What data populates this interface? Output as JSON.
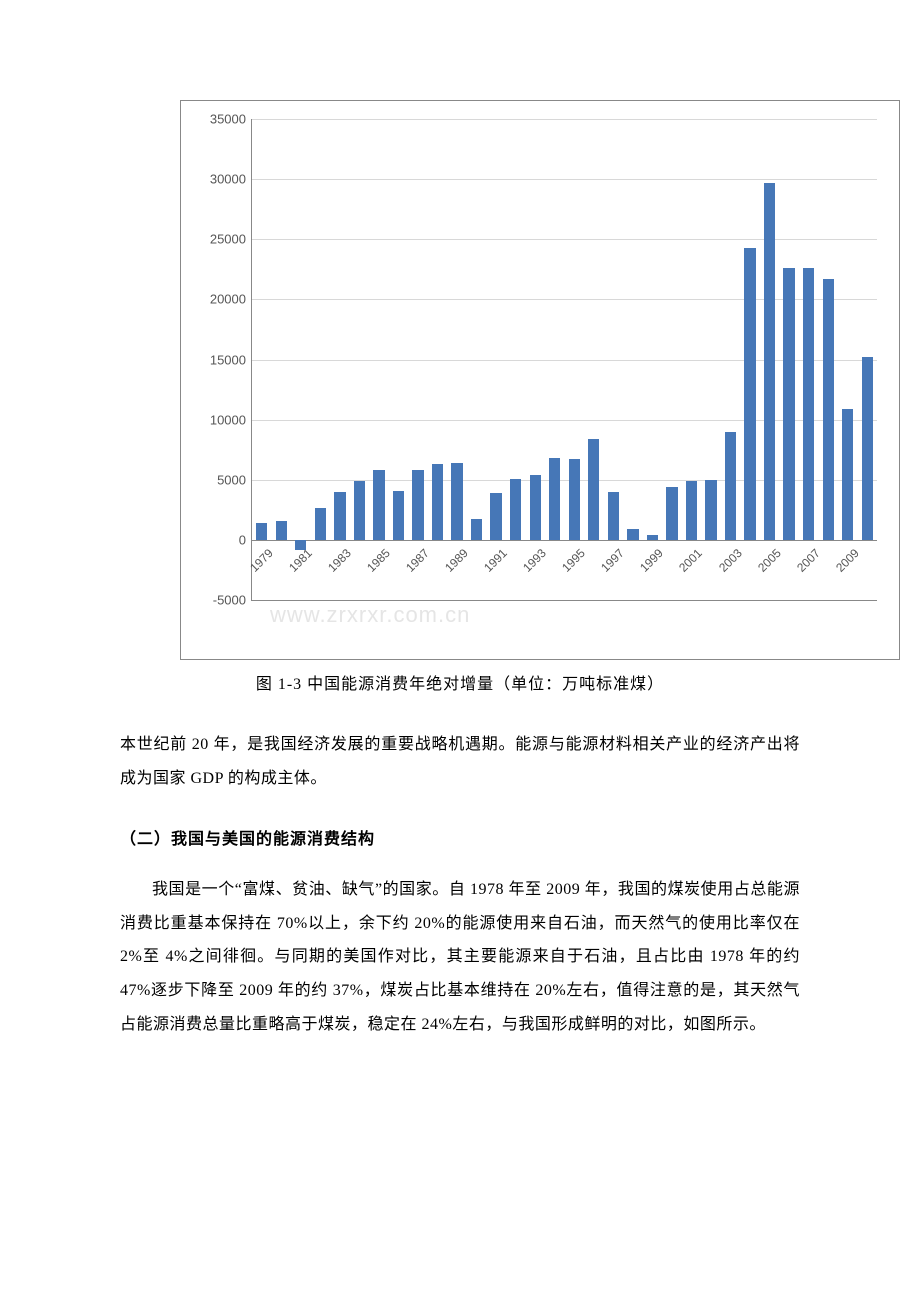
{
  "chart": {
    "type": "bar",
    "ylim": [
      -5000,
      35000
    ],
    "ytick_step": 5000,
    "bar_color": "#4677b7",
    "grid_color": "#d8d8d8",
    "border_color": "#888888",
    "background_color": "#ffffff",
    "label_fontsize": 13,
    "yticks": [
      {
        "v": -5000,
        "label": "-5000"
      },
      {
        "v": 0,
        "label": "0"
      },
      {
        "v": 5000,
        "label": "5000"
      },
      {
        "v": 10000,
        "label": "10000"
      },
      {
        "v": 15000,
        "label": "15000"
      },
      {
        "v": 20000,
        "label": "20000"
      },
      {
        "v": 25000,
        "label": "25000"
      },
      {
        "v": 30000,
        "label": "30000"
      },
      {
        "v": 35000,
        "label": "35000"
      }
    ],
    "xticks": [
      "1979",
      "1981",
      "1983",
      "1985",
      "1987",
      "1989",
      "1991",
      "1993",
      "1995",
      "1997",
      "1999",
      "2001",
      "2003",
      "2005",
      "2007",
      "2009"
    ],
    "series": [
      {
        "year": 1979,
        "v": 1400
      },
      {
        "year": 1980,
        "v": 1600
      },
      {
        "year": 1981,
        "v": -800
      },
      {
        "year": 1982,
        "v": 2650
      },
      {
        "year": 1983,
        "v": 4000
      },
      {
        "year": 1984,
        "v": 4900
      },
      {
        "year": 1985,
        "v": 5800
      },
      {
        "year": 1986,
        "v": 4100
      },
      {
        "year": 1987,
        "v": 5800
      },
      {
        "year": 1988,
        "v": 6300
      },
      {
        "year": 1989,
        "v": 6400
      },
      {
        "year": 1990,
        "v": 1700
      },
      {
        "year": 1991,
        "v": 3900
      },
      {
        "year": 1992,
        "v": 5100
      },
      {
        "year": 1993,
        "v": 5400
      },
      {
        "year": 1994,
        "v": 6800
      },
      {
        "year": 1995,
        "v": 6700
      },
      {
        "year": 1996,
        "v": 8400
      },
      {
        "year": 1997,
        "v": 4000
      },
      {
        "year": 1998,
        "v": 900
      },
      {
        "year": 1999,
        "v": 400
      },
      {
        "year": 2000,
        "v": 4400
      },
      {
        "year": 2001,
        "v": 4900
      },
      {
        "year": 2002,
        "v": 5000
      },
      {
        "year": 2003,
        "v": 9000
      },
      {
        "year": 2004,
        "v": 24300
      },
      {
        "year": 2005,
        "v": 29700
      },
      {
        "year": 2006,
        "v": 22600
      },
      {
        "year": 2007,
        "v": 22600
      },
      {
        "year": 2008,
        "v": 21700
      },
      {
        "year": 2009,
        "v": 10900
      },
      {
        "year": 2010,
        "v": 15200
      }
    ],
    "watermark": "www.zrxrxr.com.cn"
  },
  "caption": "图 1-3 中国能源消费年绝对增量（单位：万吨标准煤）",
  "paragraph1": "本世纪前 20 年，是我国经济发展的重要战略机遇期。能源与能源材料相关产业的经济产出将成为国家 GDP 的构成主体。",
  "heading2": "（二）我国与美国的能源消费结构",
  "paragraph2": "我国是一个“富煤、贫油、缺气”的国家。自 1978 年至 2009 年，我国的煤炭使用占总能源消费比重基本保持在 70%以上，余下约 20%的能源使用来自石油，而天然气的使用比率仅在 2%至 4%之间徘徊。与同期的美国作对比，其主要能源来自于石油，且占比由 1978 年的约 47%逐步下降至 2009 年的约 37%，煤炭占比基本维持在 20%左右，值得注意的是，其天然气占能源消费总量比重略高于煤炭，稳定在 24%左右，与我国形成鲜明的对比，如图所示。"
}
